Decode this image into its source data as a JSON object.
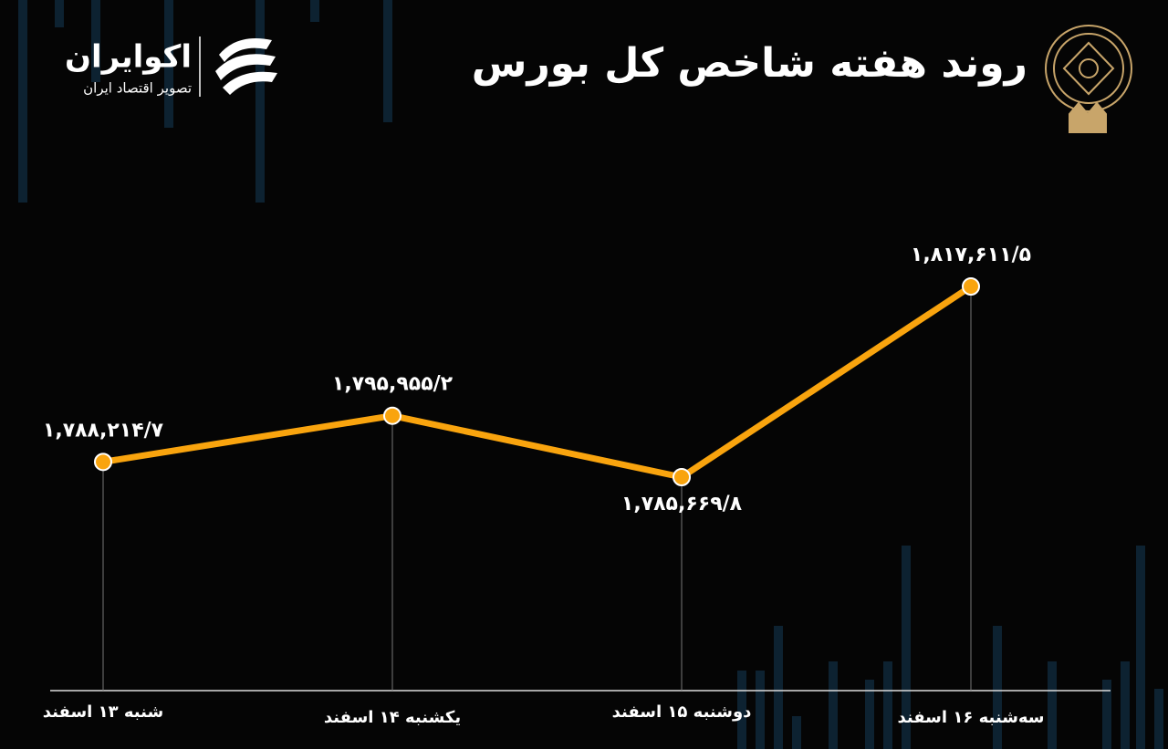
{
  "brand": {
    "name": "اکوایران",
    "tagline": "تصویر اقتصاد ایران"
  },
  "chart_data": {
    "type": "line",
    "title": "روند هفته شاخص کل بورس",
    "categories": [
      "شنبه ۱۳ اسفند",
      "یکشنبه ۱۴ اسفند",
      "دوشنبه ۱۵ اسفند",
      "سه‌شنبه ۱۶ اسفند"
    ],
    "values": [
      1788214.7,
      1795955.2,
      1785669.8,
      1817611.5
    ],
    "value_labels": [
      "۱,۷۸۸,۲۱۴/۷",
      "۱,۷۹۵,۹۵۵/۲",
      "۱,۷۸۵,۶۶۹/۸",
      "۱,۸۱۷,۶۱۱/۵"
    ],
    "color": "#f9a40e"
  }
}
